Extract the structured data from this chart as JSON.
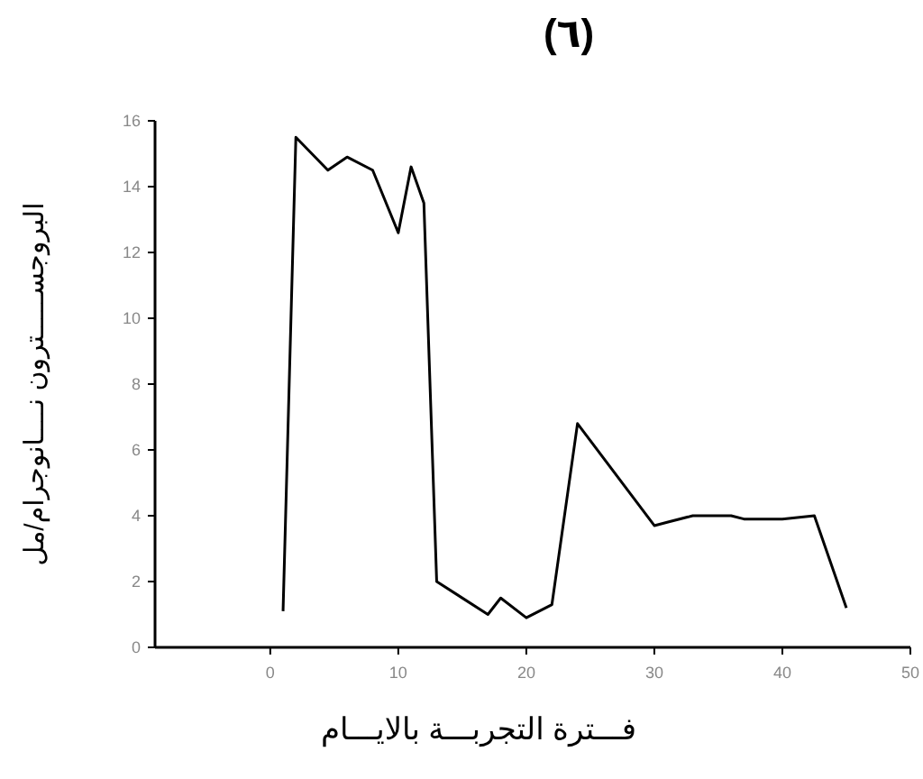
{
  "chart_data": {
    "type": "line",
    "title": "(٦)",
    "xlabel": "فـــترة التجربـــة بالايـــام",
    "ylabel": "البروجســـــترون نــــانوجرام/مل",
    "x": [
      1,
      2,
      4.5,
      6,
      8,
      10,
      11,
      12,
      13,
      17,
      18,
      20,
      22,
      24,
      30,
      31,
      33,
      36,
      37,
      40,
      42.5,
      45
    ],
    "series": [
      {
        "color": "#000000",
        "values": [
          1.1,
          15.5,
          14.5,
          14.9,
          14.5,
          12.6,
          14.6,
          13.5,
          2,
          1,
          1.5,
          0.9,
          1.3,
          6.8,
          3.7,
          3.8,
          4,
          4,
          3.9,
          3.9,
          4,
          1.2
        ]
      }
    ],
    "xlim": [
      -9,
      50
    ],
    "xticks": [
      0,
      10,
      20,
      30,
      40,
      50
    ],
    "ylim": [
      0,
      16
    ],
    "yticks": [
      0,
      2,
      4,
      6,
      8,
      10,
      12,
      14,
      16
    ],
    "line_style": "solid"
  }
}
